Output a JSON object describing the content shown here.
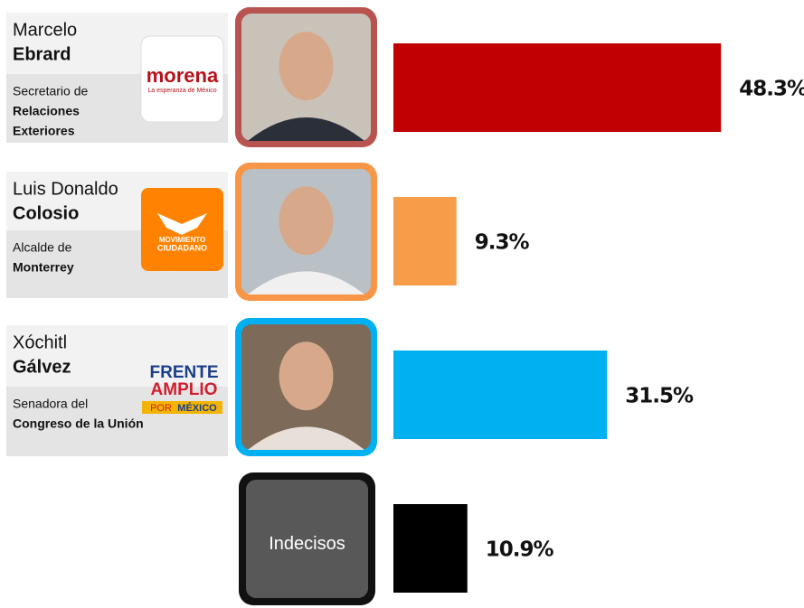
{
  "chart_data": {
    "type": "bar",
    "orientation": "horizontal",
    "categories": [
      {
        "first": "Marcelo",
        "last": "Ebrard",
        "role": "Secretario de",
        "role_detail": [
          "Relaciones",
          "Exteriores"
        ],
        "party": [
          "morena",
          "La esperanza de México"
        ]
      },
      {
        "first": "Luis Donaldo",
        "last": "Colosio",
        "role": "Alcalde de",
        "role_detail": [
          "Monterrey"
        ],
        "party": [
          "MOVIMIENTO",
          "CIUDADANO"
        ]
      },
      {
        "first": "Xóchitl",
        "last": "Gálvez",
        "role": "Senadora del",
        "role_detail": [
          "Congreso de la Unión"
        ],
        "party": [
          "FRENTE",
          "AMPLIO",
          "POR",
          "MÉXICO"
        ]
      },
      {
        "label": "Indecisos"
      }
    ],
    "series": [
      {
        "colors": [
          "#c00000",
          "#f79d4a",
          "#00b0f0",
          "#000000"
        ],
        "values": [
          48.3,
          9.3,
          31.5,
          10.9
        ],
        "value_labels": [
          "48.3%",
          "9.3%",
          "31.5%",
          "10.9%"
        ]
      }
    ]
  }
}
